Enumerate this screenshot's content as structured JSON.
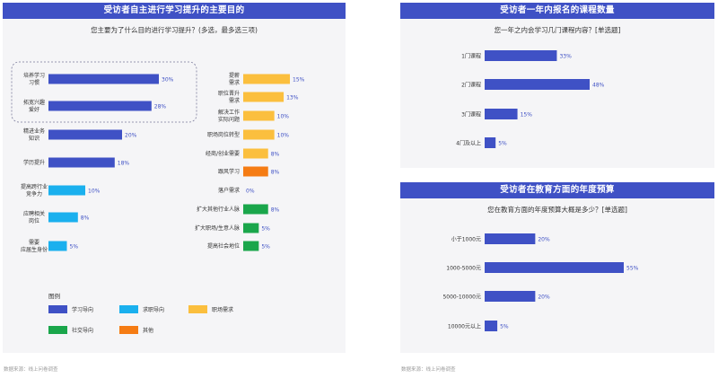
{
  "source_label": "数据来源：线上问卷调查",
  "colors": {
    "header": "#3f51c5",
    "学习导向": "#3f51c5",
    "求职导向": "#1ab0ee",
    "职场需求": "#fbbf3e",
    "社交导向": "#1aa64b",
    "其他": "#f57c14",
    "panel_bg": "#f5f5f7"
  },
  "chart_data": [
    {
      "type": "bar",
      "title": "受访者自主进行学习提升的主要目的",
      "subtitle": "您主要为了什么目的进行学习提升？(多选，最多选三项)",
      "legend_title": "图例",
      "legend": [
        "学习导向",
        "求职导向",
        "职场需求",
        "社交导向",
        "其他"
      ],
      "xlim": [
        0,
        30
      ],
      "groups": [
        {
          "items": [
            {
              "label": "培养学习习惯",
              "lines": [
                "培养学习",
                "习惯"
              ],
              "value": 30,
              "category": "学习导向"
            },
            {
              "label": "拓宽兴趣爱好",
              "lines": [
                "拓宽兴趣",
                "爱好"
              ],
              "value": 28,
              "category": "学习导向"
            },
            {
              "label": "精进业务知识",
              "lines": [
                "精进业务",
                "知识"
              ],
              "value": 20,
              "category": "学习导向"
            },
            {
              "label": "学历提升",
              "lines": [
                "学历提升"
              ],
              "value": 18,
              "category": "学习导向"
            },
            {
              "label": "提高跨行业竞争力",
              "lines": [
                "提高跨行业",
                "竞争力"
              ],
              "value": 10,
              "category": "求职导向"
            },
            {
              "label": "应聘相关岗位",
              "lines": [
                "应聘相关",
                "岗位"
              ],
              "value": 8,
              "category": "求职导向"
            },
            {
              "label": "需要应届生身份",
              "lines": [
                "需要",
                "应届生身份"
              ],
              "value": 5,
              "category": "求职导向"
            }
          ]
        },
        {
          "items": [
            {
              "label": "提薪需求",
              "lines": [
                "提薪",
                "需求"
              ],
              "value": 15,
              "category": "职场需求"
            },
            {
              "label": "职位晋升需求",
              "lines": [
                "职位晋升",
                "需求"
              ],
              "value": 13,
              "category": "职场需求"
            },
            {
              "label": "解决工作实际问题",
              "lines": [
                "解决工作",
                "实际问题"
              ],
              "value": 10,
              "category": "职场需求"
            },
            {
              "label": "职场岗位转型",
              "lines": [
                "职场岗位转型"
              ],
              "value": 10,
              "category": "职场需求"
            },
            {
              "label": "经商/创业需要",
              "lines": [
                "经商/创业需要"
              ],
              "value": 8,
              "category": "职场需求"
            },
            {
              "label": "跟风学习",
              "lines": [
                "跟风学习"
              ],
              "value": 8,
              "category": "其他"
            },
            {
              "label": "落户需求",
              "lines": [
                "落户需求"
              ],
              "value": 0,
              "category": "其他"
            },
            {
              "label": "扩大其他行业人脉",
              "lines": [
                "扩大其他行业人脉"
              ],
              "value": 8,
              "category": "社交导向"
            },
            {
              "label": "扩大职场/生意人脉",
              "lines": [
                "扩大职场/生意人脉"
              ],
              "value": 5,
              "category": "社交导向"
            },
            {
              "label": "提高社会地位",
              "lines": [
                "提高社会地位"
              ],
              "value": 5,
              "category": "社交导向"
            }
          ]
        }
      ]
    },
    {
      "type": "bar",
      "title": "受访者一年内报名的课程数量",
      "subtitle": "您一年之内会学习几门课程内容？[单选题]",
      "categories": [
        "1门课程",
        "2门课程",
        "3门课程",
        "4门及以上"
      ],
      "values": [
        33,
        48,
        15,
        5
      ],
      "xlim": [
        0,
        48
      ]
    },
    {
      "type": "bar",
      "title": "受访者在教育方面的年度预算",
      "subtitle": "您在教育方面的年度预算大概是多少？[单选题]",
      "categories": [
        "小于1000元",
        "1000-5000元",
        "5000-10000元",
        "10000元以上"
      ],
      "values": [
        20,
        55,
        20,
        5
      ],
      "xlim": [
        0,
        55
      ]
    }
  ]
}
